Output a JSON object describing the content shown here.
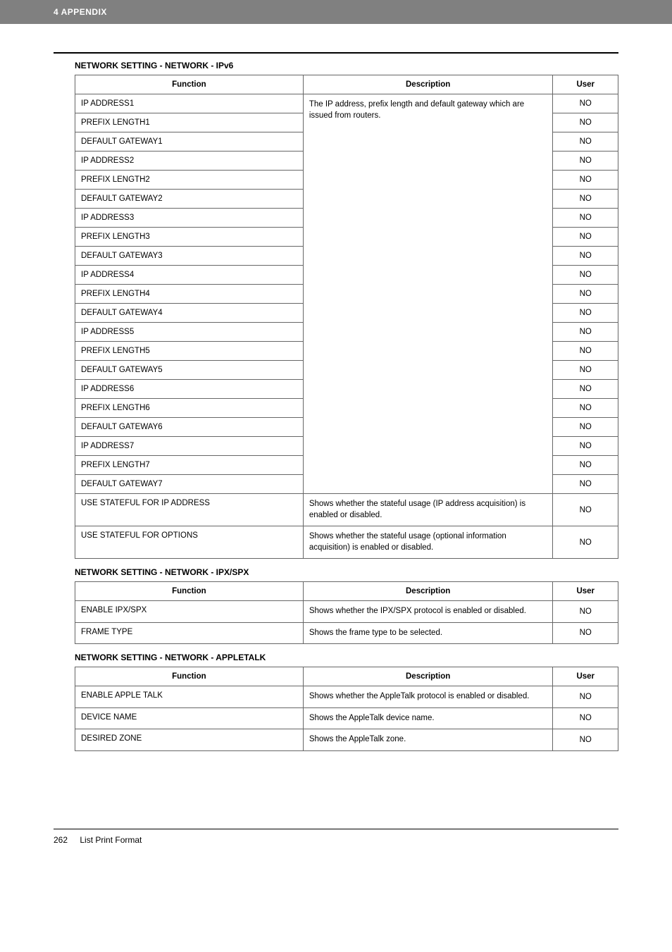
{
  "header": {
    "title": "4 APPENDIX"
  },
  "section_ipv6": {
    "title": "NETWORK SETTING - NETWORK - IPv6",
    "columns": {
      "function": "Function",
      "description": "Description",
      "user": "User"
    },
    "merged_description": "The IP address, prefix length and default gateway which are issued from routers.",
    "merged_rows": [
      {
        "func": "IP ADDRESS1",
        "user": "NO"
      },
      {
        "func": "PREFIX LENGTH1",
        "user": "NO"
      },
      {
        "func": "DEFAULT GATEWAY1",
        "user": "NO"
      },
      {
        "func": "IP ADDRESS2",
        "user": "NO"
      },
      {
        "func": "PREFIX LENGTH2",
        "user": "NO"
      },
      {
        "func": "DEFAULT GATEWAY2",
        "user": "NO"
      },
      {
        "func": "IP ADDRESS3",
        "user": "NO"
      },
      {
        "func": "PREFIX LENGTH3",
        "user": "NO"
      },
      {
        "func": "DEFAULT GATEWAY3",
        "user": "NO"
      },
      {
        "func": "IP ADDRESS4",
        "user": "NO"
      },
      {
        "func": "PREFIX LENGTH4",
        "user": "NO"
      },
      {
        "func": "DEFAULT GATEWAY4",
        "user": "NO"
      },
      {
        "func": "IP ADDRESS5",
        "user": "NO"
      },
      {
        "func": "PREFIX LENGTH5",
        "user": "NO"
      },
      {
        "func": "DEFAULT GATEWAY5",
        "user": "NO"
      },
      {
        "func": "IP ADDRESS6",
        "user": "NO"
      },
      {
        "func": "PREFIX LENGTH6",
        "user": "NO"
      },
      {
        "func": "DEFAULT GATEWAY6",
        "user": "NO"
      },
      {
        "func": "IP ADDRESS7",
        "user": "NO"
      },
      {
        "func": "PREFIX LENGTH7",
        "user": "NO"
      },
      {
        "func": "DEFAULT GATEWAY7",
        "user": "NO"
      }
    ],
    "tail_rows": [
      {
        "func": "USE STATEFUL FOR IP ADDRESS",
        "desc": "Shows whether the stateful usage (IP address acquisition) is enabled or disabled.",
        "user": "NO"
      },
      {
        "func": "USE STATEFUL FOR OPTIONS",
        "desc": "Shows whether the stateful usage (optional information acquisition) is enabled or disabled.",
        "user": "NO"
      }
    ]
  },
  "section_ipx": {
    "title": "NETWORK SETTING - NETWORK - IPX/SPX",
    "columns": {
      "function": "Function",
      "description": "Description",
      "user": "User"
    },
    "rows": [
      {
        "func": "ENABLE IPX/SPX",
        "desc": "Shows whether the IPX/SPX protocol is enabled or disabled.",
        "user": "NO"
      },
      {
        "func": "FRAME TYPE",
        "desc": "Shows the frame type to be selected.",
        "user": "NO"
      }
    ]
  },
  "section_appletalk": {
    "title": "NETWORK SETTING - NETWORK - APPLETALK",
    "columns": {
      "function": "Function",
      "description": "Description",
      "user": "User"
    },
    "rows": [
      {
        "func": "ENABLE APPLE TALK",
        "desc": "Shows whether the AppleTalk protocol is enabled or disabled.",
        "user": "NO"
      },
      {
        "func": "DEVICE NAME",
        "desc": "Shows the AppleTalk device name.",
        "user": "NO"
      },
      {
        "func": "DESIRED ZONE",
        "desc": "Shows the AppleTalk zone.",
        "user": "NO"
      }
    ]
  },
  "footer": {
    "page": "262",
    "label": "List Print Format"
  }
}
